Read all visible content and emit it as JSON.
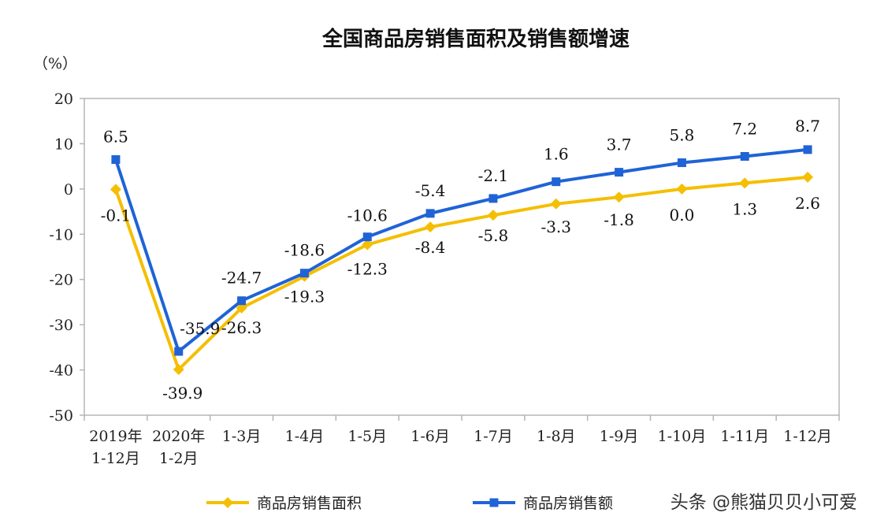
{
  "chart_data": {
    "type": "line",
    "title": "全国商品房销售面积及销售额增速",
    "ylabel": "（%）",
    "xlabel": "",
    "ylim": [
      -50,
      20
    ],
    "yticks": [
      "20",
      "10",
      "0",
      "-10",
      "-20",
      "-30",
      "-40",
      "-50"
    ],
    "yticks_values": [
      20,
      10,
      0,
      -10,
      -20,
      -30,
      -40,
      -50
    ],
    "grid": false,
    "legend_position": "bottom",
    "categories": [
      [
        "2019年",
        "1-12月"
      ],
      [
        "2020年",
        "1-2月"
      ],
      [
        "1-3月"
      ],
      [
        "1-4月"
      ],
      [
        "1-5月"
      ],
      [
        "1-6月"
      ],
      [
        "1-7月"
      ],
      [
        "1-8月"
      ],
      [
        "1-9月"
      ],
      [
        "1-10月"
      ],
      [
        "1-11月"
      ],
      [
        "1-12月"
      ]
    ],
    "series": [
      {
        "name": "商品房销售面积",
        "color": "#F5BE00",
        "marker": "diamond",
        "values": [
          -0.1,
          -39.9,
          -26.3,
          -19.3,
          -12.3,
          -8.4,
          -5.8,
          -3.3,
          -1.8,
          0.0,
          1.3,
          2.6
        ],
        "labels": [
          "-0.1",
          "-39.9",
          "-26.3",
          "-19.3",
          "-12.3",
          "-8.4",
          "-5.8",
          "-3.3",
          "-1.8",
          "0.0",
          "1.3",
          "2.6"
        ]
      },
      {
        "name": "商品房销售额",
        "color": "#1F63D6",
        "marker": "square",
        "values": [
          6.5,
          -35.9,
          -24.7,
          -18.6,
          -10.6,
          -5.4,
          -2.1,
          1.6,
          3.7,
          5.8,
          7.2,
          8.7
        ],
        "labels": [
          "6.5",
          "-35.9",
          "-24.7",
          "-18.6",
          "-10.6",
          "-5.4",
          "-2.1",
          "1.6",
          "3.7",
          "5.8",
          "7.2",
          "8.7"
        ]
      }
    ]
  },
  "watermark": "头条 @熊猫贝贝小可爱"
}
